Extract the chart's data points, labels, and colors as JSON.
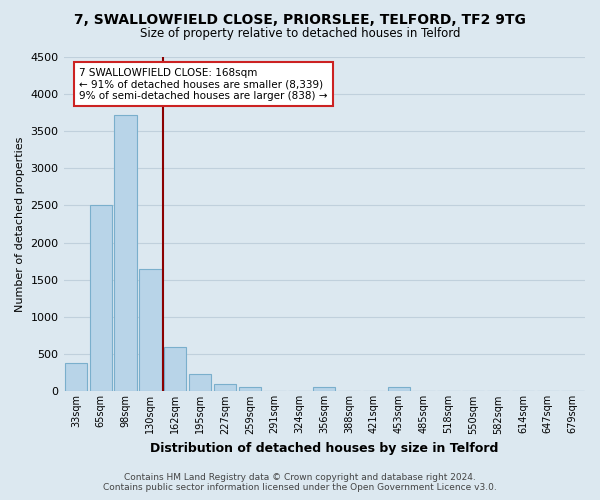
{
  "title": "7, SWALLOWFIELD CLOSE, PRIORSLEE, TELFORD, TF2 9TG",
  "subtitle": "Size of property relative to detached houses in Telford",
  "xlabel": "Distribution of detached houses by size in Telford",
  "ylabel": "Number of detached properties",
  "bar_labels": [
    "33sqm",
    "65sqm",
    "98sqm",
    "130sqm",
    "162sqm",
    "195sqm",
    "227sqm",
    "259sqm",
    "291sqm",
    "324sqm",
    "356sqm",
    "388sqm",
    "421sqm",
    "453sqm",
    "485sqm",
    "518sqm",
    "550sqm",
    "582sqm",
    "614sqm",
    "647sqm",
    "679sqm"
  ],
  "bar_values": [
    380,
    2500,
    3720,
    1640,
    590,
    240,
    100,
    55,
    0,
    0,
    55,
    0,
    0,
    55,
    0,
    0,
    0,
    0,
    0,
    0,
    0
  ],
  "bar_color": "#b8d4e8",
  "bar_edge_color": "#7aafcc",
  "vline_index": 3.5,
  "vline_color": "#8b0000",
  "annotation_line1": "7 SWALLOWFIELD CLOSE: 168sqm",
  "annotation_line2": "← 91% of detached houses are smaller (8,339)",
  "annotation_line3": "9% of semi-detached houses are larger (838) →",
  "ylim": [
    0,
    4500
  ],
  "yticks": [
    0,
    500,
    1000,
    1500,
    2000,
    2500,
    3000,
    3500,
    4000,
    4500
  ],
  "footer1": "Contains HM Land Registry data © Crown copyright and database right 2024.",
  "footer2": "Contains public sector information licensed under the Open Government Licence v3.0.",
  "bg_color": "#dce8f0",
  "plot_bg_color": "#dce8f0",
  "grid_color": "#c0d0dc",
  "ann_box_color": "white",
  "ann_edge_color": "#cc2222"
}
